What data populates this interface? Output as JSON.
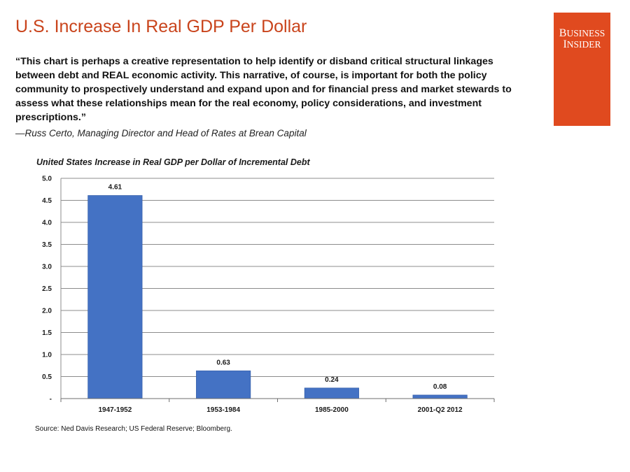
{
  "slide": {
    "title": "U.S. Increase In Real GDP Per Dollar",
    "quote": "“This chart is perhaps a creative representation to help identify or disband critical structural linkages between debt and REAL economic activity. This narrative, of course, is important for both the policy community to prospectively understand and expand upon and for financial press and market stewards to assess what these relationships mean for the real economy, policy considerations, and investment prescriptions.”",
    "attribution": "—Russ Certo, Managing Director and Head of Rates at Brean Capital",
    "source": "Source: Ned Davis Research; US Federal Reserve; Bloomberg."
  },
  "logo": {
    "line1_cap": "B",
    "line1_rest": "USINESS",
    "line2_cap": "I",
    "line2_rest": "NSIDER",
    "bg_color": "#e04a1f"
  },
  "colors": {
    "title": "#c9441c",
    "bar": "#4472c4",
    "grid": "#8c8c8c"
  },
  "chart_data": {
    "type": "bar",
    "title": "United States Increase in Real GDP per Dollar of Incremental Debt",
    "categories": [
      "1947-1952",
      "1953-1984",
      "1985-2000",
      "2001-Q2 2012"
    ],
    "values": [
      4.61,
      0.63,
      0.24,
      0.08
    ],
    "data_labels": [
      "4.61",
      "0.63",
      "0.24",
      "0.08"
    ],
    "ylim": [
      0,
      5
    ],
    "y_ticks": [
      0,
      0.5,
      1.0,
      1.5,
      2.0,
      2.5,
      3.0,
      3.5,
      4.0,
      4.5,
      5.0
    ],
    "y_tick_labels": [
      "-",
      "0.5",
      "1.0",
      "1.5",
      "2.0",
      "2.5",
      "3.0",
      "3.5",
      "4.0",
      "4.5",
      "5.0"
    ],
    "xlabel": "",
    "ylabel": "",
    "grid": true
  }
}
